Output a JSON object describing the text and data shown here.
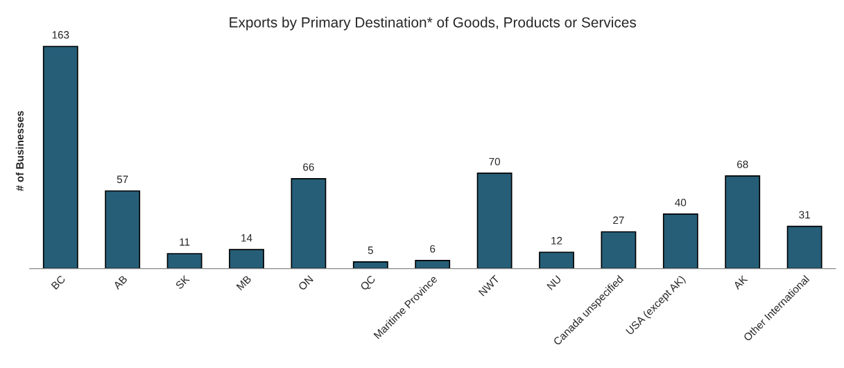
{
  "chart_data": {
    "type": "bar",
    "title": "Exports by Primary Destination* of Goods, Products or Services",
    "ylabel": "# of Businesses",
    "categories": [
      "BC",
      "AB",
      "SK",
      "MB",
      "ON",
      "QC",
      "Maritime Province",
      "NWT",
      "NU",
      "Canada unspecified",
      "USA (except AK)",
      "AK",
      "Other International"
    ],
    "values": [
      163,
      57,
      11,
      14,
      66,
      5,
      6,
      70,
      12,
      27,
      40,
      68,
      31
    ],
    "color": "#265e78",
    "data_labels": true,
    "grid": false,
    "legend": false,
    "tick_labels": "x"
  }
}
